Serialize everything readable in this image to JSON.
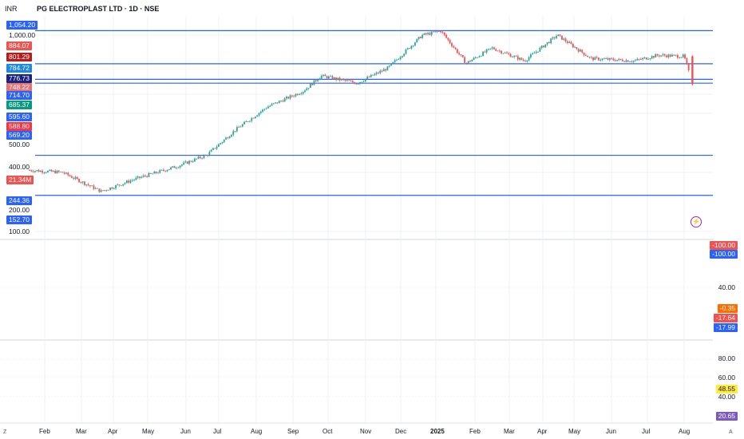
{
  "header": {
    "currency": "INR",
    "title": "PG ELECTROPLAST LTD · 1D · NSE"
  },
  "colors": {
    "up": "#26a69a",
    "down": "#ef5350",
    "hline": "#2962ff",
    "grid": "#eef0f3"
  },
  "chart_data": {
    "type": "candlestick",
    "title": "PG ELECTROPLAST LTD · 1D · NSE",
    "ylabel": "INR",
    "y_scale": "log",
    "y_ticks": [
      "1,000.00",
      "500.00",
      "400.00",
      "200.00",
      "100.00"
    ],
    "x_ticks": [
      "Feb",
      "Mar",
      "Apr",
      "May",
      "Jun",
      "Jul",
      "Aug",
      "Sep",
      "Oct",
      "Nov",
      "Dec",
      "2025",
      "Feb",
      "Mar",
      "Apr",
      "May",
      "Jun",
      "Jul",
      "Aug"
    ],
    "horizontal_lines": [
      1054.2,
      714.7,
      595.6,
      569.2,
      244.36,
      152.7
    ],
    "price_path": [
      {
        "date": "2024-01-20",
        "close": 205
      },
      {
        "date": "2024-02-15",
        "close": 200
      },
      {
        "date": "2024-03-20",
        "close": 160
      },
      {
        "date": "2024-04-20",
        "close": 185
      },
      {
        "date": "2024-05-25",
        "close": 215
      },
      {
        "date": "2024-06-20",
        "close": 245
      },
      {
        "date": "2024-07-15",
        "close": 330
      },
      {
        "date": "2024-08-10",
        "close": 430
      },
      {
        "date": "2024-09-10",
        "close": 520
      },
      {
        "date": "2024-09-25",
        "close": 620
      },
      {
        "date": "2024-10-25",
        "close": 570
      },
      {
        "date": "2024-11-20",
        "close": 680
      },
      {
        "date": "2024-12-20",
        "close": 1000
      },
      {
        "date": "2025-01-05",
        "close": 1050
      },
      {
        "date": "2025-01-25",
        "close": 720
      },
      {
        "date": "2025-02-15",
        "close": 860
      },
      {
        "date": "2025-03-15",
        "close": 740
      },
      {
        "date": "2025-04-15",
        "close": 1000
      },
      {
        "date": "2025-05-15",
        "close": 760
      },
      {
        "date": "2025-06-20",
        "close": 740
      },
      {
        "date": "2025-07-10",
        "close": 790
      },
      {
        "date": "2025-08-01",
        "close": 780
      },
      {
        "date": "2025-08-08",
        "close": 560
      }
    ],
    "price_labels": [
      {
        "value": "1,054.20",
        "color": "#2962ff"
      },
      {
        "value": "884.07",
        "color": "#ef5350"
      },
      {
        "value": "801.29",
        "color": "#b71c1c"
      },
      {
        "value": "784.72",
        "color": "#1e88e5"
      },
      {
        "value": "776.73",
        "color": "#1a237e"
      },
      {
        "value": "748.22",
        "color": "#e57373"
      },
      {
        "value": "714.70",
        "color": "#2962ff"
      },
      {
        "value": "685.37",
        "color": "#089981"
      },
      {
        "value": "595.60",
        "color": "#2962ff"
      },
      {
        "value": "588.80",
        "color": "#f23645"
      },
      {
        "value": "569.20",
        "color": "#2962ff"
      },
      {
        "value": "21.34M",
        "color": "#ef5350"
      },
      {
        "value": "244.36",
        "color": "#2962ff"
      },
      {
        "value": "152.70",
        "color": "#2962ff"
      }
    ],
    "indicator1": {
      "labels": [
        {
          "value": "-100.00",
          "color": "#ef5350"
        },
        {
          "value": "-100.00",
          "color": "#2962ff"
        },
        {
          "value": "40.00",
          "color": ""
        },
        {
          "value": "-0.35",
          "color": "#ff6d00"
        },
        {
          "value": "-17.64",
          "color": "#ef5350"
        },
        {
          "value": "-17.99",
          "color": "#2962ff"
        }
      ]
    },
    "indicator2": {
      "labels": [
        {
          "value": "80.00",
          "color": ""
        },
        {
          "value": "60.00",
          "color": ""
        },
        {
          "value": "48.55",
          "color": "#ffeb3b"
        },
        {
          "value": "40.00",
          "color": ""
        },
        {
          "value": "20.65",
          "color": "#7e57c2"
        }
      ]
    }
  },
  "footer": {
    "left_corner": "Z",
    "right_corner": "A"
  }
}
